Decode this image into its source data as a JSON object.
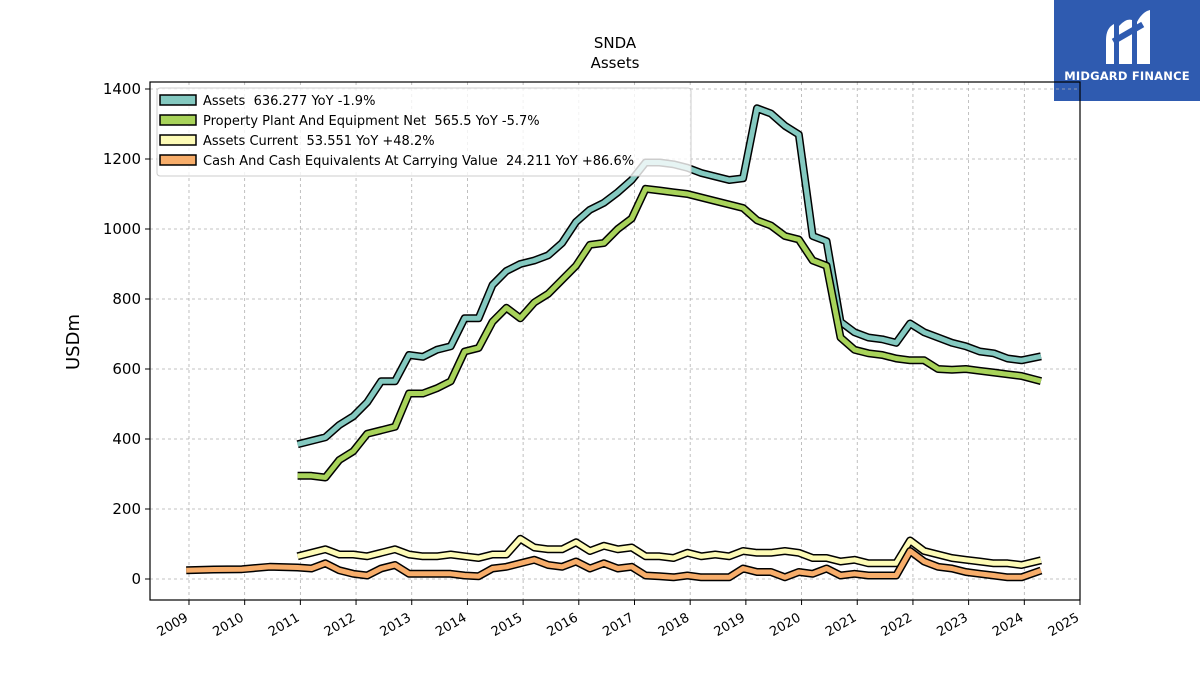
{
  "brand": {
    "name": "MIDGARD FINANCE",
    "logo_icon": "midgard-m-logo",
    "background": "#2f5bb0"
  },
  "chart_data": {
    "type": "line",
    "title": "SNDA",
    "subtitle": "Assets",
    "xlabel": "",
    "ylabel": "USDm",
    "xlim": [
      2008.3,
      2025.0
    ],
    "ylim": [
      -60,
      1420
    ],
    "x_ticks": [
      "2009",
      "2010",
      "2011",
      "2012",
      "2013",
      "2014",
      "2015",
      "2016",
      "2017",
      "2018",
      "2019",
      "2020",
      "2021",
      "2022",
      "2023",
      "2024",
      "2025"
    ],
    "y_ticks": [
      0,
      200,
      400,
      600,
      800,
      1000,
      1200,
      1400
    ],
    "grid": true,
    "legend_position": "top-left",
    "series": [
      {
        "name": "Assets",
        "legend": "Assets  636.277 YoY -1.9%",
        "color": "#84c9c0",
        "points": [
          [
            2010.95,
            385
          ],
          [
            2011.2,
            395
          ],
          [
            2011.45,
            405
          ],
          [
            2011.7,
            440
          ],
          [
            2011.95,
            465
          ],
          [
            2012.2,
            505
          ],
          [
            2012.45,
            565
          ],
          [
            2012.7,
            565
          ],
          [
            2012.95,
            640
          ],
          [
            2013.2,
            635
          ],
          [
            2013.45,
            655
          ],
          [
            2013.7,
            665
          ],
          [
            2013.95,
            745
          ],
          [
            2014.2,
            745
          ],
          [
            2014.45,
            840
          ],
          [
            2014.7,
            880
          ],
          [
            2014.95,
            900
          ],
          [
            2015.2,
            910
          ],
          [
            2015.45,
            925
          ],
          [
            2015.7,
            960
          ],
          [
            2015.95,
            1020
          ],
          [
            2016.2,
            1055
          ],
          [
            2016.45,
            1075
          ],
          [
            2016.7,
            1105
          ],
          [
            2016.95,
            1140
          ],
          [
            2017.2,
            1190
          ],
          [
            2017.45,
            1190
          ],
          [
            2017.7,
            1185
          ],
          [
            2017.95,
            1175
          ],
          [
            2018.2,
            1160
          ],
          [
            2018.45,
            1150
          ],
          [
            2018.7,
            1140
          ],
          [
            2018.95,
            1145
          ],
          [
            2019.2,
            1345
          ],
          [
            2019.45,
            1330
          ],
          [
            2019.7,
            1295
          ],
          [
            2019.95,
            1270
          ],
          [
            2020.2,
            980
          ],
          [
            2020.45,
            965
          ],
          [
            2020.7,
            735
          ],
          [
            2020.95,
            705
          ],
          [
            2021.2,
            690
          ],
          [
            2021.45,
            685
          ],
          [
            2021.7,
            675
          ],
          [
            2021.95,
            730
          ],
          [
            2022.2,
            705
          ],
          [
            2022.45,
            690
          ],
          [
            2022.7,
            675
          ],
          [
            2022.95,
            665
          ],
          [
            2023.2,
            650
          ],
          [
            2023.45,
            645
          ],
          [
            2023.7,
            630
          ],
          [
            2023.95,
            625
          ],
          [
            2024.3,
            636.277
          ]
        ]
      },
      {
        "name": "Property Plant And Equipment Net",
        "legend": "Property Plant And Equipment Net  565.5 YoY -5.7%",
        "color": "#a8d35a",
        "points": [
          [
            2010.95,
            295
          ],
          [
            2011.2,
            295
          ],
          [
            2011.45,
            290
          ],
          [
            2011.7,
            340
          ],
          [
            2011.95,
            365
          ],
          [
            2012.2,
            415
          ],
          [
            2012.45,
            425
          ],
          [
            2012.7,
            435
          ],
          [
            2012.95,
            530
          ],
          [
            2013.2,
            530
          ],
          [
            2013.45,
            545
          ],
          [
            2013.7,
            565
          ],
          [
            2013.95,
            650
          ],
          [
            2014.2,
            660
          ],
          [
            2014.45,
            735
          ],
          [
            2014.7,
            775
          ],
          [
            2014.95,
            745
          ],
          [
            2015.2,
            790
          ],
          [
            2015.45,
            815
          ],
          [
            2015.7,
            855
          ],
          [
            2015.95,
            895
          ],
          [
            2016.2,
            955
          ],
          [
            2016.45,
            960
          ],
          [
            2016.7,
            1000
          ],
          [
            2016.95,
            1030
          ],
          [
            2017.2,
            1115
          ],
          [
            2017.45,
            1110
          ],
          [
            2017.7,
            1105
          ],
          [
            2017.95,
            1100
          ],
          [
            2018.2,
            1090
          ],
          [
            2018.45,
            1080
          ],
          [
            2018.7,
            1070
          ],
          [
            2018.95,
            1060
          ],
          [
            2019.2,
            1025
          ],
          [
            2019.45,
            1010
          ],
          [
            2019.7,
            980
          ],
          [
            2019.95,
            970
          ],
          [
            2020.2,
            910
          ],
          [
            2020.45,
            895
          ],
          [
            2020.7,
            690
          ],
          [
            2020.95,
            655
          ],
          [
            2021.2,
            645
          ],
          [
            2021.45,
            640
          ],
          [
            2021.7,
            630
          ],
          [
            2021.95,
            625
          ],
          [
            2022.2,
            625
          ],
          [
            2022.45,
            600
          ],
          [
            2022.7,
            598
          ],
          [
            2022.95,
            600
          ],
          [
            2023.2,
            595
          ],
          [
            2023.45,
            590
          ],
          [
            2023.7,
            585
          ],
          [
            2023.95,
            580
          ],
          [
            2024.3,
            565.5
          ]
        ]
      },
      {
        "name": "Assets Current",
        "legend": "Assets Current  53.551 YoY +48.2%",
        "color": "#fdfbb6",
        "points": [
          [
            2010.95,
            65
          ],
          [
            2011.2,
            75
          ],
          [
            2011.45,
            85
          ],
          [
            2011.7,
            70
          ],
          [
            2011.95,
            70
          ],
          [
            2012.2,
            65
          ],
          [
            2012.45,
            75
          ],
          [
            2012.7,
            85
          ],
          [
            2012.95,
            70
          ],
          [
            2013.2,
            65
          ],
          [
            2013.45,
            65
          ],
          [
            2013.7,
            70
          ],
          [
            2013.95,
            65
          ],
          [
            2014.2,
            60
          ],
          [
            2014.45,
            70
          ],
          [
            2014.7,
            70
          ],
          [
            2014.95,
            115
          ],
          [
            2015.2,
            90
          ],
          [
            2015.45,
            85
          ],
          [
            2015.7,
            85
          ],
          [
            2015.95,
            105
          ],
          [
            2016.2,
            80
          ],
          [
            2016.45,
            95
          ],
          [
            2016.7,
            85
          ],
          [
            2016.95,
            90
          ],
          [
            2017.2,
            65
          ],
          [
            2017.45,
            65
          ],
          [
            2017.7,
            60
          ],
          [
            2017.95,
            75
          ],
          [
            2018.2,
            65
          ],
          [
            2018.45,
            70
          ],
          [
            2018.7,
            65
          ],
          [
            2018.95,
            80
          ],
          [
            2019.2,
            75
          ],
          [
            2019.45,
            75
          ],
          [
            2019.7,
            80
          ],
          [
            2019.95,
            75
          ],
          [
            2020.2,
            60
          ],
          [
            2020.45,
            60
          ],
          [
            2020.7,
            50
          ],
          [
            2020.95,
            55
          ],
          [
            2021.2,
            45
          ],
          [
            2021.45,
            45
          ],
          [
            2021.7,
            45
          ],
          [
            2021.95,
            110
          ],
          [
            2022.2,
            80
          ],
          [
            2022.45,
            70
          ],
          [
            2022.7,
            60
          ],
          [
            2022.95,
            55
          ],
          [
            2023.2,
            50
          ],
          [
            2023.45,
            45
          ],
          [
            2023.7,
            45
          ],
          [
            2023.95,
            40
          ],
          [
            2024.3,
            53.551
          ]
        ]
      },
      {
        "name": "Cash And Cash Equivalents At Carrying Value",
        "legend": "Cash And Cash Equivalents At Carrying Value  24.211 YoY +86.6%",
        "color": "#f7ad6a",
        "points": [
          [
            2008.95,
            25
          ],
          [
            2009.45,
            27
          ],
          [
            2009.95,
            28
          ],
          [
            2010.45,
            35
          ],
          [
            2010.95,
            33
          ],
          [
            2011.2,
            30
          ],
          [
            2011.45,
            45
          ],
          [
            2011.7,
            25
          ],
          [
            2011.95,
            15
          ],
          [
            2012.2,
            10
          ],
          [
            2012.45,
            30
          ],
          [
            2012.7,
            40
          ],
          [
            2012.95,
            15
          ],
          [
            2013.2,
            15
          ],
          [
            2013.45,
            15
          ],
          [
            2013.7,
            15
          ],
          [
            2013.95,
            10
          ],
          [
            2014.2,
            8
          ],
          [
            2014.45,
            30
          ],
          [
            2014.7,
            35
          ],
          [
            2014.95,
            45
          ],
          [
            2015.2,
            55
          ],
          [
            2015.45,
            40
          ],
          [
            2015.7,
            35
          ],
          [
            2015.95,
            50
          ],
          [
            2016.2,
            30
          ],
          [
            2016.45,
            45
          ],
          [
            2016.7,
            30
          ],
          [
            2016.95,
            35
          ],
          [
            2017.2,
            10
          ],
          [
            2017.45,
            8
          ],
          [
            2017.7,
            5
          ],
          [
            2017.95,
            10
          ],
          [
            2018.2,
            5
          ],
          [
            2018.45,
            5
          ],
          [
            2018.7,
            5
          ],
          [
            2018.95,
            30
          ],
          [
            2019.2,
            20
          ],
          [
            2019.45,
            20
          ],
          [
            2019.7,
            5
          ],
          [
            2019.95,
            20
          ],
          [
            2020.2,
            15
          ],
          [
            2020.45,
            30
          ],
          [
            2020.7,
            10
          ],
          [
            2020.95,
            15
          ],
          [
            2021.2,
            10
          ],
          [
            2021.45,
            10
          ],
          [
            2021.7,
            10
          ],
          [
            2021.95,
            80
          ],
          [
            2022.2,
            50
          ],
          [
            2022.45,
            35
          ],
          [
            2022.7,
            30
          ],
          [
            2022.95,
            20
          ],
          [
            2023.2,
            15
          ],
          [
            2023.45,
            10
          ],
          [
            2023.7,
            5
          ],
          [
            2023.95,
            5
          ],
          [
            2024.3,
            24.211
          ]
        ]
      }
    ]
  }
}
